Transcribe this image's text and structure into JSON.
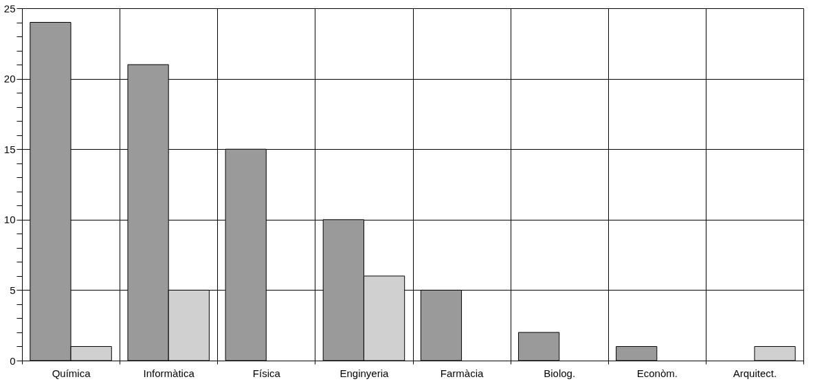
{
  "chart_data": {
    "type": "bar",
    "categories": [
      "Química",
      "Informàtica",
      "Física",
      "Enginyeria",
      "Farmàcia",
      "Biolog.",
      "Econòm.",
      "Arquitect."
    ],
    "series": [
      {
        "color": "#9a9a9a",
        "values": [
          24,
          21,
          15,
          10,
          5,
          2,
          1,
          null
        ]
      },
      {
        "color": "#d0d0d0",
        "values": [
          1,
          5,
          null,
          6,
          null,
          null,
          null,
          1
        ]
      }
    ],
    "ylim": [
      0,
      25
    ],
    "yticks": [
      0,
      {
        "value": 1,
        "label": null
      },
      {
        "value": 2,
        "label": null
      },
      {
        "value": 3,
        "label": null
      },
      {
        "value": 4,
        "label": null
      },
      5,
      {
        "value": 6,
        "label": null
      },
      {
        "value": 7,
        "label": null
      },
      {
        "value": 8,
        "label": null
      },
      {
        "value": 9,
        "label": null
      },
      10,
      {
        "value": 11,
        "label": null
      },
      {
        "value": 12,
        "label": null
      },
      {
        "value": 13,
        "label": null
      },
      {
        "value": 14,
        "label": null
      },
      15,
      {
        "value": 16,
        "label": null
      },
      {
        "value": 17,
        "label": null
      },
      {
        "value": 18,
        "label": null
      },
      {
        "value": 19,
        "label": null
      },
      20,
      {
        "value": 21,
        "label": null
      },
      {
        "value": 22,
        "label": null
      },
      {
        "value": 23,
        "label": null
      },
      {
        "value": 24,
        "label": null
      },
      25
    ],
    "grid": true
  }
}
